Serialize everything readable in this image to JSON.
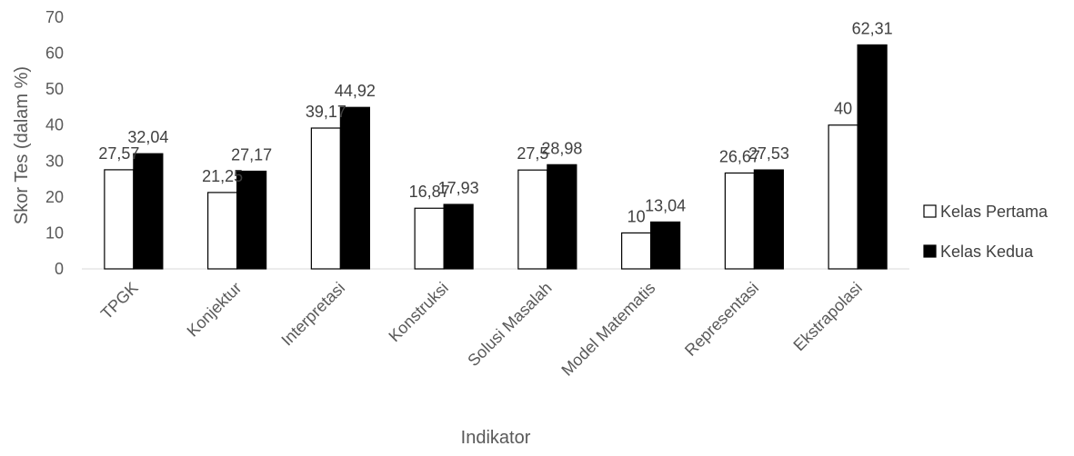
{
  "chart_data": {
    "type": "bar",
    "categories": [
      "TPGK",
      "Konjektur",
      "Interpretasi",
      "Konstruksi",
      "Solusi Masalah",
      "Model Matematis",
      "Representasi",
      "Ekstrapolasi"
    ],
    "series": [
      {
        "name": "Kelas Pertama",
        "values": [
          27.57,
          21.25,
          39.17,
          16.87,
          27.5,
          10,
          26.67,
          40
        ],
        "labels": [
          "27,57",
          "21,25",
          "39,17",
          "16,87",
          "27,5",
          "10",
          "26,67",
          "40"
        ],
        "color": "#ffffff"
      },
      {
        "name": "Kelas Kedua",
        "values": [
          32.04,
          27.17,
          44.92,
          17.93,
          28.98,
          13.04,
          27.53,
          62.31
        ],
        "labels": [
          "32,04",
          "27,17",
          "44,92",
          "17,93",
          "28,98",
          "13,04",
          "27,53",
          "62,31"
        ],
        "color": "#000000"
      }
    ],
    "xlabel": "Indikator",
    "ylabel": "Skor Tes (dalam %)",
    "ylim": [
      0,
      70
    ],
    "yticks": [
      0,
      10,
      20,
      30,
      40,
      50,
      60,
      70
    ],
    "grid": false,
    "legend": "right"
  }
}
